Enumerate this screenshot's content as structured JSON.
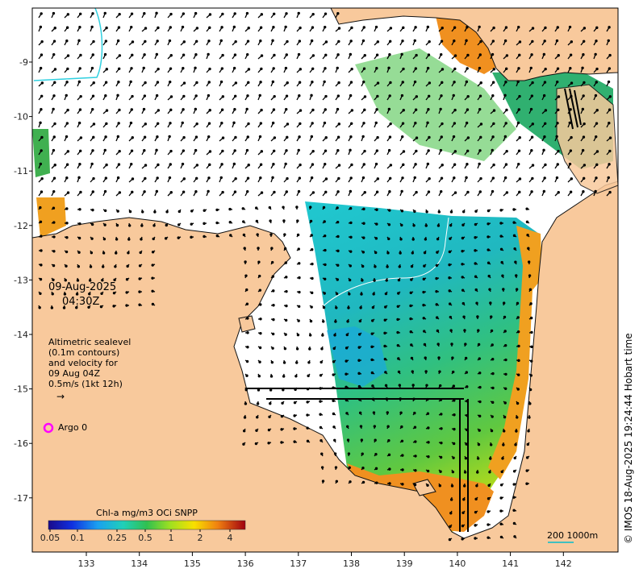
{
  "map": {
    "date": "09-Aug-2025",
    "time": "04:30Z",
    "legend_lines": [
      "Altimetric sealevel",
      "(0.1m contours)",
      "and velocity for",
      "09 Aug 04Z",
      "0.5m/s (1kt 12h)"
    ],
    "argo_label": "Argo 0",
    "credit": "© IMOS 18-Aug-2025 19:24:44 Hobart time",
    "scale_label": "200  1000m",
    "lon_ticks": [
      "133",
      "134",
      "135",
      "136",
      "137",
      "138",
      "139",
      "140",
      "141",
      "142"
    ],
    "lat_ticks": [
      "-9",
      "-10",
      "-11",
      "-12",
      "-13",
      "-14",
      "-15",
      "-16",
      "-17"
    ]
  },
  "colorbar": {
    "title": "Chl-a mg/m3 OCi SNPP",
    "tick_labels": [
      "0.05",
      "0.1",
      "0.25",
      "0.5",
      "1",
      "2",
      "4"
    ]
  },
  "colors": {
    "land": "#f8c99c",
    "coast": "#111111",
    "argo_marker": "#ff00ff",
    "scale_bar": "#40c0c0",
    "contour": "#ffffff"
  }
}
